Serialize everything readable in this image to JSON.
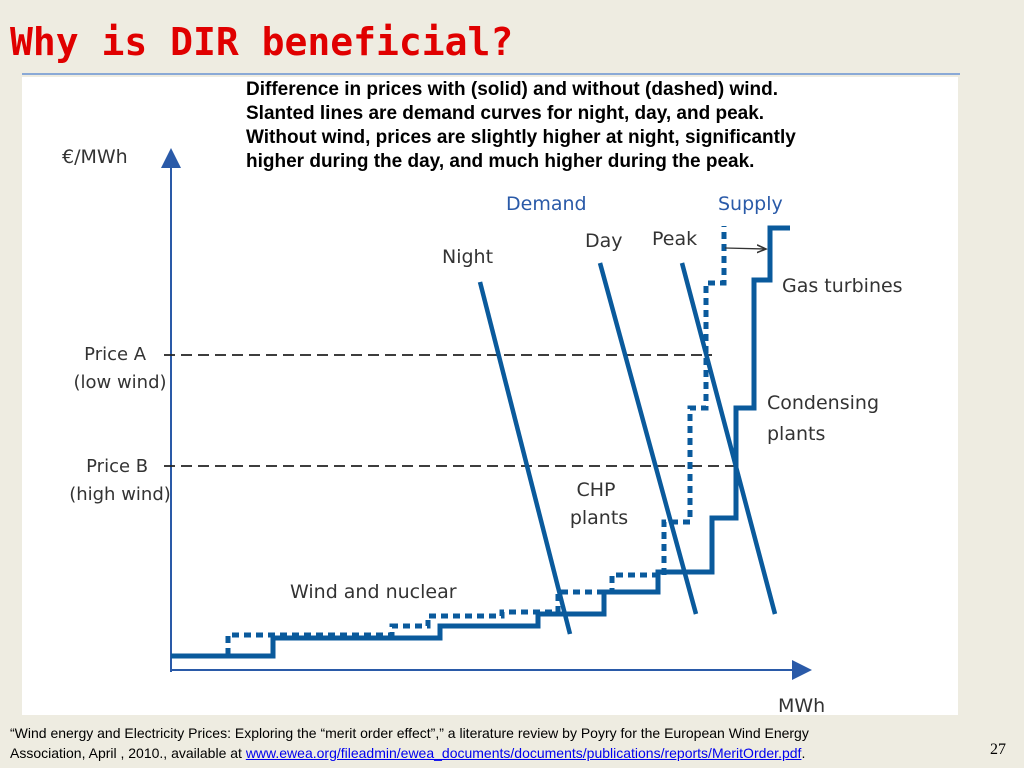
{
  "slide": {
    "title": "Why is DIR beneficial?",
    "page_number": "27"
  },
  "caption": [
    "Difference in prices with (solid) and without (dashed) wind.",
    "Slanted lines are demand curves for night, day, and peak.",
    "Without wind, prices are slightly higher at night, significantly",
    "higher during the day, and much higher during the peak."
  ],
  "footnote": {
    "text_1": "“Wind energy and Electricity Prices: Exploring the “merit order effect”,” a literature review by Poyry for the European Wind Energy",
    "text_2": "Association, April , 2010., available at ",
    "link": "www.ewea.org/fileadmin/ewea_documents/documents/publications/reports/MeritOrder.pdf",
    "text_3": "."
  },
  "colors": {
    "accent_title": "#e00000",
    "curve": "#0a5a9c",
    "label_blue": "#2a5aa8",
    "rule": "#8aa9d6"
  },
  "chart_data": {
    "type": "line",
    "xlabel": "MWh",
    "ylabel": "€/MWh",
    "headers": {
      "demand": "Demand",
      "supply": "Supply"
    },
    "demand_curves": [
      "Night",
      "Day",
      "Peak"
    ],
    "price_levels": [
      {
        "label": [
          "Price A",
          "(low wind)"
        ]
      },
      {
        "label": [
          "Price B",
          "(high wind)"
        ]
      }
    ],
    "plant_groups": [
      {
        "label": [
          "Wind and nuclear"
        ]
      },
      {
        "label": [
          "CHP",
          "plants"
        ]
      },
      {
        "label": [
          "Condensing",
          "plants"
        ]
      },
      {
        "label": [
          "Gas turbines"
        ]
      }
    ],
    "series": [
      {
        "name": "solid",
        "style": "solid"
      },
      {
        "name": "dashed",
        "style": "dashed"
      }
    ]
  }
}
